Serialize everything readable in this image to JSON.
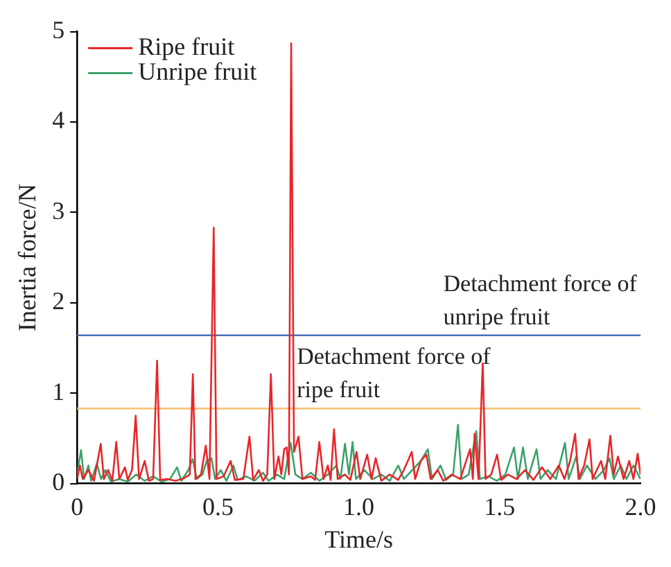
{
  "chart_data": {
    "type": "line",
    "xlabel": "Time/s",
    "ylabel": "Inertia force/N",
    "xlim": [
      0,
      2
    ],
    "ylim": [
      0,
      5
    ],
    "xticks": [
      0,
      0.5,
      {
        "value": 1,
        "label": "1.0"
      },
      1.5,
      {
        "value": 2,
        "label": "2.0"
      }
    ],
    "yticks": [
      0,
      1,
      2,
      3,
      4,
      5
    ],
    "grid": false,
    "legend": "top left",
    "marker": "none",
    "ref_lines": [
      {
        "axis": "y",
        "value": 1.64,
        "label": "Detachment force of unripe fruit",
        "color": "#4a6fb5"
      },
      {
        "axis": "y",
        "value": 0.83,
        "label": "Detachment force of ripe fruit",
        "color": "#f5c77a"
      }
    ],
    "series": [
      {
        "name": "Ripe fruit",
        "color": "#e8262a",
        "x": [
          0,
          0.01,
          0.02,
          0.04,
          0.06,
          0.084,
          0.095,
          0.11,
          0.125,
          0.139,
          0.15,
          0.17,
          0.18,
          0.195,
          0.208,
          0.22,
          0.24,
          0.255,
          0.27,
          0.284,
          0.295,
          0.32,
          0.35,
          0.38,
          0.4,
          0.411,
          0.42,
          0.44,
          0.457,
          0.47,
          0.485,
          0.495,
          0.52,
          0.545,
          0.56,
          0.59,
          0.612,
          0.625,
          0.645,
          0.66,
          0.675,
          0.688,
          0.7,
          0.715,
          0.725,
          0.735,
          0.744,
          0.752,
          0.76,
          0.77,
          0.786,
          0.8,
          0.83,
          0.845,
          0.86,
          0.875,
          0.89,
          0.9,
          0.912,
          0.925,
          0.95,
          0.97,
          0.992,
          1.005,
          1.03,
          1.045,
          1.06,
          1.08,
          1.11,
          1.14,
          1.16,
          1.188,
          1.2,
          1.22,
          1.24,
          1.255,
          1.28,
          1.3,
          1.33,
          1.36,
          1.395,
          1.405,
          1.411,
          1.425,
          1.44,
          1.45,
          1.47,
          1.491,
          1.505,
          1.53,
          1.56,
          1.59,
          1.62,
          1.65,
          1.68,
          1.71,
          1.73,
          1.75,
          1.768,
          1.78,
          1.8,
          1.819,
          1.83,
          1.86,
          1.875,
          1.893,
          1.905,
          1.92,
          1.94,
          1.96,
          1.975,
          1.99,
          2
        ],
        "values": [
          0.05,
          0.2,
          0.05,
          0.15,
          0.03,
          0.44,
          0.05,
          0.15,
          0.03,
          0.46,
          0.05,
          0.18,
          0.04,
          0.15,
          0.75,
          0.05,
          0.25,
          0.03,
          0.05,
          1.36,
          0.04,
          0.05,
          0.03,
          0.06,
          0.1,
          1.21,
          0.05,
          0.1,
          0.42,
          0.05,
          2.83,
          0.05,
          0.08,
          0.25,
          0.04,
          0.05,
          0.52,
          0.04,
          0.15,
          0.03,
          0.1,
          1.21,
          0.05,
          0.3,
          0.1,
          0.38,
          0.4,
          0.1,
          4.87,
          0.35,
          0.52,
          0.05,
          0.08,
          0.04,
          0.46,
          0.05,
          0.2,
          0.04,
          0.6,
          0.05,
          0.1,
          0.04,
          0.35,
          0.05,
          0.32,
          0.05,
          0.28,
          0.03,
          0.1,
          0.04,
          0.15,
          0.35,
          0.05,
          0.25,
          0.32,
          0.05,
          0.15,
          0.03,
          0.1,
          0.05,
          0.38,
          0.05,
          0.55,
          0.05,
          1.33,
          0.05,
          0.1,
          0.32,
          0.04,
          0.1,
          0.05,
          0.15,
          0.04,
          0.18,
          0.05,
          0.2,
          0.05,
          0.25,
          0.55,
          0.05,
          0.2,
          0.49,
          0.05,
          0.25,
          0.05,
          0.53,
          0.1,
          0.3,
          0.05,
          0.25,
          0.05,
          0.33,
          0.1
        ]
      },
      {
        "name": "Unripe fruit",
        "color": "#3aa36a",
        "x": [
          0,
          0.014,
          0.025,
          0.04,
          0.05,
          0.07,
          0.085,
          0.1,
          0.12,
          0.15,
          0.18,
          0.21,
          0.24,
          0.27,
          0.3,
          0.33,
          0.355,
          0.37,
          0.395,
          0.41,
          0.425,
          0.445,
          0.46,
          0.477,
          0.49,
          0.51,
          0.53,
          0.555,
          0.57,
          0.6,
          0.63,
          0.66,
          0.68,
          0.71,
          0.735,
          0.758,
          0.775,
          0.8,
          0.83,
          0.86,
          0.89,
          0.92,
          0.935,
          0.951,
          0.965,
          0.978,
          0.99,
          1.02,
          1.05,
          1.08,
          1.11,
          1.14,
          1.16,
          1.19,
          1.22,
          1.245,
          1.26,
          1.29,
          1.31,
          1.335,
          1.352,
          1.365,
          1.39,
          1.417,
          1.43,
          1.46,
          1.49,
          1.52,
          1.551,
          1.565,
          1.583,
          1.6,
          1.631,
          1.645,
          1.67,
          1.7,
          1.732,
          1.745,
          1.772,
          1.785,
          1.81,
          1.84,
          1.87,
          1.89,
          1.905,
          1.93,
          1.95,
          1.975,
          2
        ],
        "values": [
          0.1,
          0.37,
          0.05,
          0.2,
          0.03,
          0.22,
          0.05,
          0.15,
          0.02,
          0.05,
          0.02,
          0.1,
          0.03,
          0.08,
          0.02,
          0.05,
          0.18,
          0.03,
          0.15,
          0.27,
          0.05,
          0.1,
          0.25,
          0.28,
          0.05,
          0.15,
          0.03,
          0.2,
          0.04,
          0.08,
          0.03,
          0.12,
          0.03,
          0.1,
          0.05,
          0.45,
          0.1,
          0.05,
          0.12,
          0.03,
          0.1,
          0.2,
          0.05,
          0.44,
          0.1,
          0.46,
          0.05,
          0.15,
          0.05,
          0.1,
          0.03,
          0.2,
          0.05,
          0.15,
          0.25,
          0.38,
          0.05,
          0.2,
          0.04,
          0.1,
          0.65,
          0.05,
          0.1,
          0.58,
          0.05,
          0.08,
          0.03,
          0.1,
          0.4,
          0.05,
          0.4,
          0.05,
          0.38,
          0.05,
          0.15,
          0.05,
          0.45,
          0.05,
          0.3,
          0.05,
          0.2,
          0.05,
          0.15,
          0.28,
          0.05,
          0.2,
          0.05,
          0.2,
          0.05
        ]
      }
    ]
  }
}
